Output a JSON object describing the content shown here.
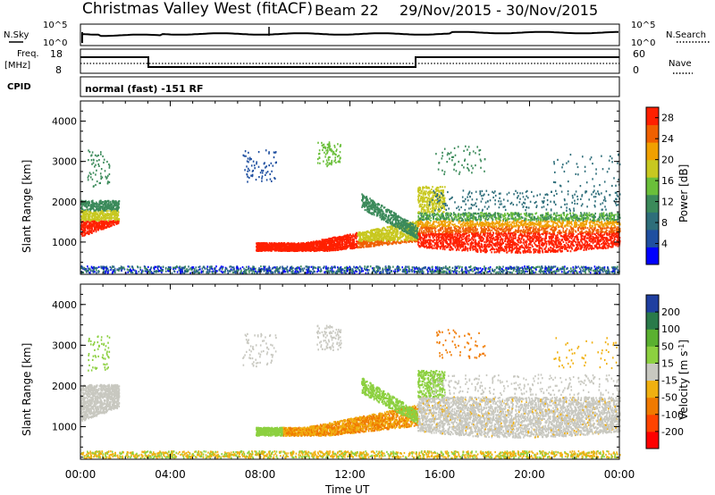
{
  "header": {
    "radar": "Christmas Valley West (fitACF)",
    "beam": "Beam 22",
    "date_range": "29/Nov/2015 - 30/Nov/2015"
  },
  "noise_panel": {
    "left_label": "N.Sky",
    "left_ticks": [
      "10^5",
      "10^0"
    ],
    "right_label": "N.Search",
    "right_ticks": [
      "10^5",
      "10^0"
    ]
  },
  "freq_panel": {
    "left_label_line1": "Freq.",
    "left_label_line2": "[MHz]",
    "left_ticks": [
      "18",
      "8"
    ],
    "right_label": "Nave",
    "right_ticks": [
      "60",
      "0"
    ]
  },
  "cpid": {
    "label": "CPID",
    "value": "normal (fast) -151 RF"
  },
  "colors": {
    "power": [
      "#0000ff",
      "#1f4fa0",
      "#2e6e7a",
      "#3b8a5a",
      "#6abf3a",
      "#c8c820",
      "#f0a000",
      "#f06000",
      "#ff2000"
    ],
    "velocity": [
      "#1f3fa0",
      "#2a7a4a",
      "#5ab030",
      "#8cd040",
      "#c8c8c0",
      "#f0b010",
      "#f07a00",
      "#ff4400",
      "#ff0000"
    ]
  },
  "chart_data": [
    {
      "type": "heatmap",
      "name": "power",
      "ylabel": "Slant Range [km]",
      "yticks": [
        1000,
        2000,
        3000,
        4000
      ],
      "ylim": [
        200,
        4500
      ],
      "xlim": [
        0,
        24
      ],
      "colorbar_label": "Power [dB]",
      "colorbar_ticks": [
        "4",
        "8",
        "12",
        "16",
        "20",
        "24",
        "28"
      ],
      "colorbar_range": [
        0,
        30
      ]
    },
    {
      "type": "heatmap",
      "name": "velocity",
      "ylabel": "Slant Range [km]",
      "yticks": [
        1000,
        2000,
        3000,
        4000
      ],
      "ylim": [
        200,
        4500
      ],
      "xlim": [
        0,
        24
      ],
      "colorbar_label": "Velocity [m s^-1]",
      "colorbar_ticks": [
        "-200",
        "-100",
        "-50",
        "-15",
        "15",
        "50",
        "100",
        "200"
      ]
    }
  ],
  "xaxis": {
    "label": "Time UT",
    "ticks": [
      "00:00",
      "04:00",
      "08:00",
      "12:00",
      "16:00",
      "20:00",
      "00:00"
    ]
  }
}
